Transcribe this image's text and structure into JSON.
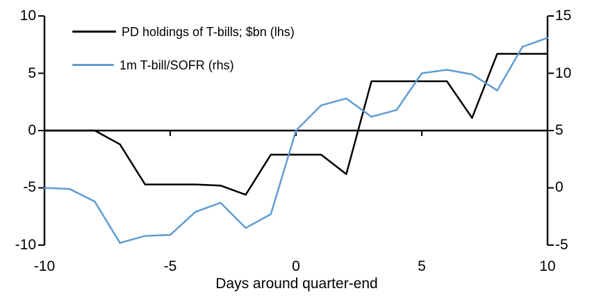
{
  "chart_data": {
    "type": "line",
    "title": "",
    "xlabel": "Days around quarter-end",
    "ylabel_left": "",
    "ylabel_right": "",
    "grid": false,
    "background": "#ffffff",
    "x": [
      -10,
      -9,
      -8,
      -7,
      -6,
      -5,
      -4,
      -3,
      -2,
      -1,
      0,
      1,
      2,
      3,
      4,
      5,
      6,
      7,
      8,
      9,
      10
    ],
    "series": [
      {
        "name": "PD holdings of T-bills; $bn (lhs)",
        "axis": "left",
        "color": "#000000",
        "values": [
          0,
          0,
          0,
          -1.2,
          -4.7,
          -4.7,
          -4.7,
          -4.8,
          -5.6,
          -2.1,
          -2.1,
          -2.1,
          -3.8,
          4.3,
          4.3,
          4.3,
          4.3,
          1.1,
          6.7,
          6.7,
          6.7
        ]
      },
      {
        "name": "1m T-bill/SOFR (rhs)",
        "axis": "right",
        "color": "#5E9CD3",
        "values": [
          0,
          -0.1,
          -1.2,
          -4.8,
          -4.2,
          -4.1,
          -2.1,
          -1.3,
          -3.5,
          -2.3,
          5.0,
          7.2,
          7.8,
          6.2,
          6.8,
          10.0,
          10.3,
          9.9,
          8.5,
          12.3,
          13.1
        ]
      }
    ],
    "left_axis": {
      "min": -10,
      "max": 10,
      "tick_labels": [
        "10",
        "5",
        "0",
        "-5",
        "-10"
      ]
    },
    "right_axis": {
      "min": -5,
      "max": 15,
      "tick_labels": [
        "15",
        "10",
        "5",
        "0",
        "-5"
      ]
    },
    "x_axis": {
      "tick_labels": [
        "-10",
        "-5",
        "0",
        "5",
        "10"
      ],
      "axis_line_at": 0
    },
    "legend": {
      "position": "top-left"
    }
  }
}
